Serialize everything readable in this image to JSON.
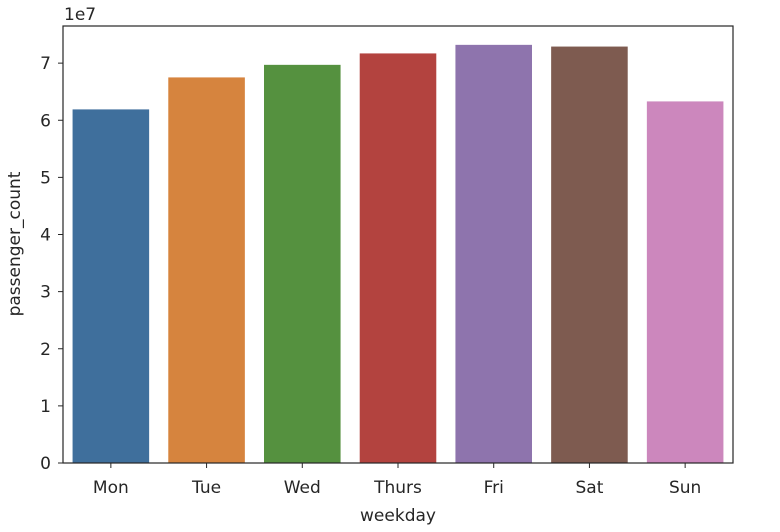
{
  "chart_data": {
    "type": "bar",
    "categories": [
      "Mon",
      "Tue",
      "Wed",
      "Thurs",
      "Fri",
      "Sat",
      "Sun"
    ],
    "values": [
      61900000,
      67500000,
      69700000,
      71700000,
      73200000,
      72900000,
      63300000
    ],
    "colors": [
      "#3f6f9c",
      "#d6843e",
      "#55913f",
      "#b3433f",
      "#8e74ad",
      "#7e5b50",
      "#cc87bd"
    ],
    "xlabel": "weekday",
    "ylabel": "passenger_count",
    "offset_label": "1e7",
    "ylim": [
      0,
      76500000
    ],
    "yticks": [
      0,
      10000000,
      20000000,
      30000000,
      40000000,
      50000000,
      60000000,
      70000000
    ],
    "ytick_labels": [
      "0",
      "1",
      "2",
      "3",
      "4",
      "5",
      "6",
      "7"
    ],
    "grid": false,
    "legend": "none"
  }
}
